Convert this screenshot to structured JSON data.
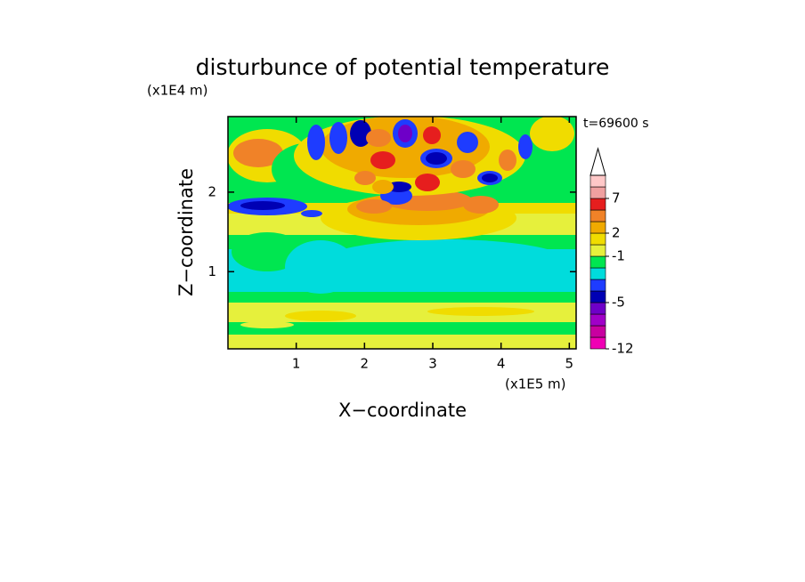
{
  "chart_data": {
    "type": "contour",
    "title": "disturbunce of potential temperature",
    "x_label": "X−coordinate",
    "y_label": "Z−coordinate",
    "x_unit": "(x1E5 m)",
    "y_unit": "(x1E4 m)",
    "annotation": "t=69600 s",
    "xlim": [
      0,
      5.1
    ],
    "ylim": [
      0.03,
      2.95
    ],
    "xticks": [
      1,
      2,
      3,
      4,
      5
    ],
    "yticks": [
      1,
      2
    ],
    "colorbar": {
      "levels": [
        -12,
        -10,
        -8,
        -6,
        -5,
        -4,
        -3,
        -2,
        -1,
        1,
        2,
        3,
        5,
        7,
        9,
        12
      ],
      "colors": [
        "#f000b4",
        "#c800a0",
        "#a000c8",
        "#6e00c8",
        "#0000b4",
        "#1e3cff",
        "#00dcdc",
        "#00e650",
        "#e6f03c",
        "#f0dc00",
        "#f0aa00",
        "#f08228",
        "#e61e1e",
        "#f0a0a0",
        "#ffc8c8"
      ],
      "ticks": [
        -12,
        -5,
        -1,
        2,
        7
      ]
    }
  }
}
